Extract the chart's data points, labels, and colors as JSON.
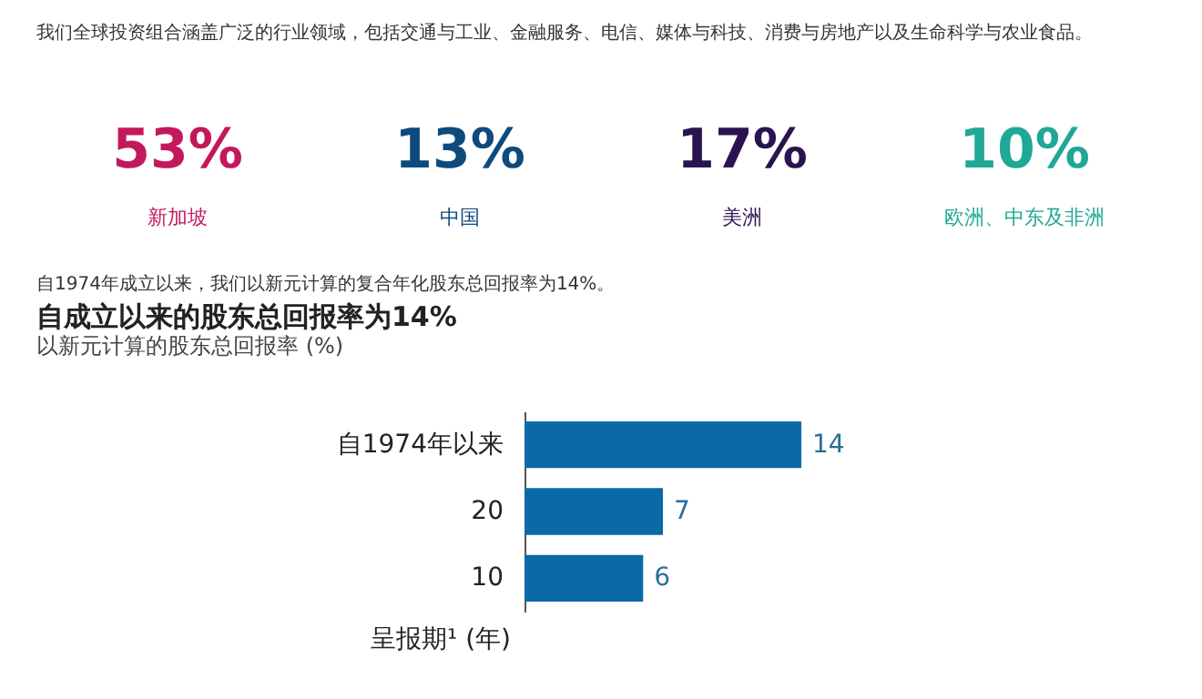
{
  "chart_data": [
    {
      "type": "other",
      "categories": [
        "新加坡",
        "中国",
        "美洲",
        "欧洲、中东及非洲"
      ],
      "values": [
        53,
        13,
        17,
        10
      ],
      "value_labels": [
        "53%",
        "13%",
        "17%",
        "10%"
      ],
      "colors": [
        "#c4185c",
        "#0e4a7e",
        "#2a1450",
        "#1fa896"
      ],
      "annotations": [
        "我们全球投资组合涵盖广泛的行业领域，包括交通与工业、金融服务、电信、媒体与科技、消费与房地产以及生命科学与农业食品。",
        "自1974年成立以来，我们以新元计算的复合年化股东总回报率为14%。"
      ]
    },
    {
      "type": "bar",
      "orientation": "horizontal",
      "title": "自成立以来的股东总回报率为14%",
      "subtitle": "以新元计算的股东总回报率 (%)",
      "ylabel": "呈报期¹ (年)",
      "categories": [
        "自1974年以来",
        "20",
        "10"
      ],
      "values": [
        14,
        7,
        6
      ],
      "color": "#0a6aa6",
      "data_labels": true
    }
  ]
}
